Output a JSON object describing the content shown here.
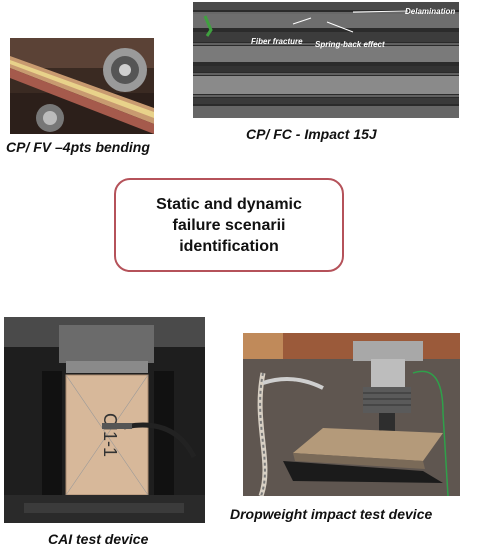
{
  "captions": {
    "bending": "CP/ FV –4pts bending",
    "impact": "CP/ FC - Impact 15J",
    "cai": "CAI test device",
    "dropweight": "Dropweight impact test device"
  },
  "center_box": {
    "line1": "Static and dynamic",
    "line2": "failure scenarii",
    "line3": "identification"
  },
  "micrograph_annotations": {
    "delamination": "Delamination",
    "fiber_fracture": "Fiber fracture",
    "spring_back": "Spring-back effect"
  },
  "specimen_marking": "CI1-1",
  "colors": {
    "box_border": "#b5525a",
    "caption_text": "#111111"
  }
}
